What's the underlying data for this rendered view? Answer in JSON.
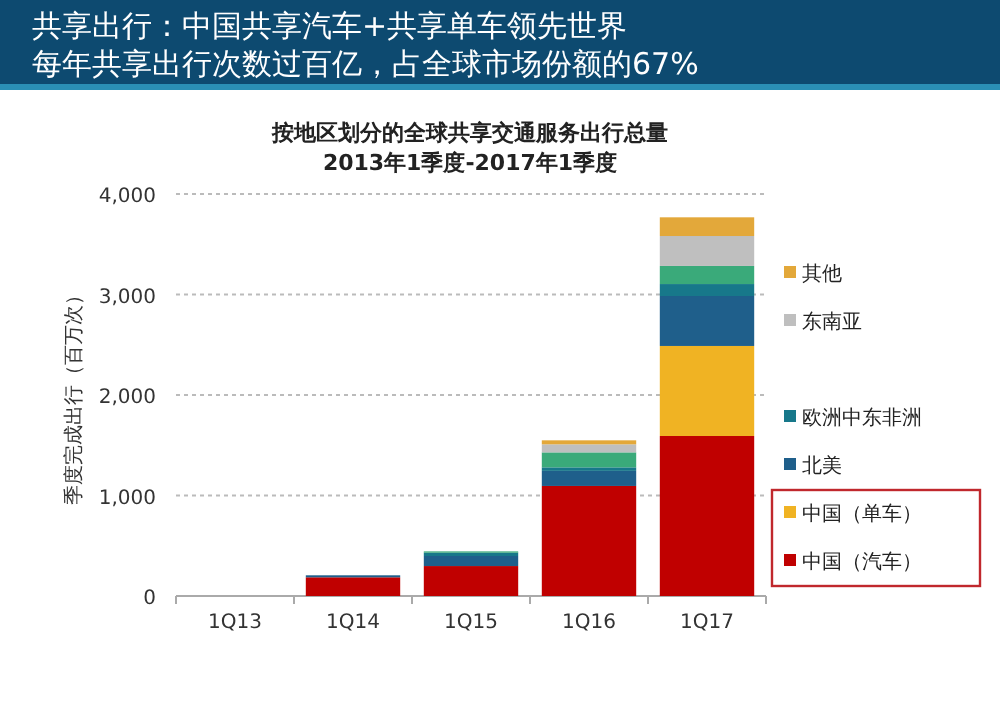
{
  "chart_data": {
    "type": "bar",
    "stacked": true,
    "title": "共享出行：中国共享汽车+共享单车领先世界",
    "subtitle": "每年共享出行次数过百亿，占全球市场份额的67%",
    "annotations": [
      "按地区划分的全球共享交通服务出行总量",
      "2013年1季度-2017年1季度"
    ],
    "ylabel": "季度完成出行（百万次）",
    "categories": [
      "1Q13",
      "1Q14",
      "1Q15",
      "1Q16",
      "1Q17"
    ],
    "series": [
      {
        "name": "中国（汽车）",
        "color": "#c00000",
        "values": [
          0,
          186,
          298,
          1095,
          1592
        ]
      },
      {
        "name": "中国（单车）",
        "color": "#f0b323",
        "values": [
          0,
          0,
          0,
          0,
          896
        ]
      },
      {
        "name": "北美",
        "color": "#1f5f8b",
        "values": [
          0,
          20,
          100,
          150,
          497
        ]
      },
      {
        "name": "欧洲中东非洲",
        "color": "#17788a",
        "values": [
          0,
          0,
          33,
          35,
          119
        ]
      },
      {
        "color": "#3aaa7a",
        "values": [
          0,
          0,
          13,
          149,
          180
        ]
      },
      {
        "name": "东南亚",
        "color": "#bfbfbf",
        "values": [
          0,
          0,
          0,
          80,
          298
        ]
      },
      {
        "name": "其他",
        "color": "#e3a83a",
        "values": [
          0,
          0,
          0,
          40,
          186
        ]
      }
    ],
    "ylim": [
      0,
      4000
    ],
    "yticks": [
      0,
      {
        "value": 1000,
        "label": "1,000"
      },
      {
        "value": 2000,
        "label": "2,000"
      },
      {
        "value": 3000,
        "label": "3,000"
      },
      {
        "value": 4000,
        "label": "4,000"
      }
    ],
    "grid": "y",
    "legend": "right"
  }
}
